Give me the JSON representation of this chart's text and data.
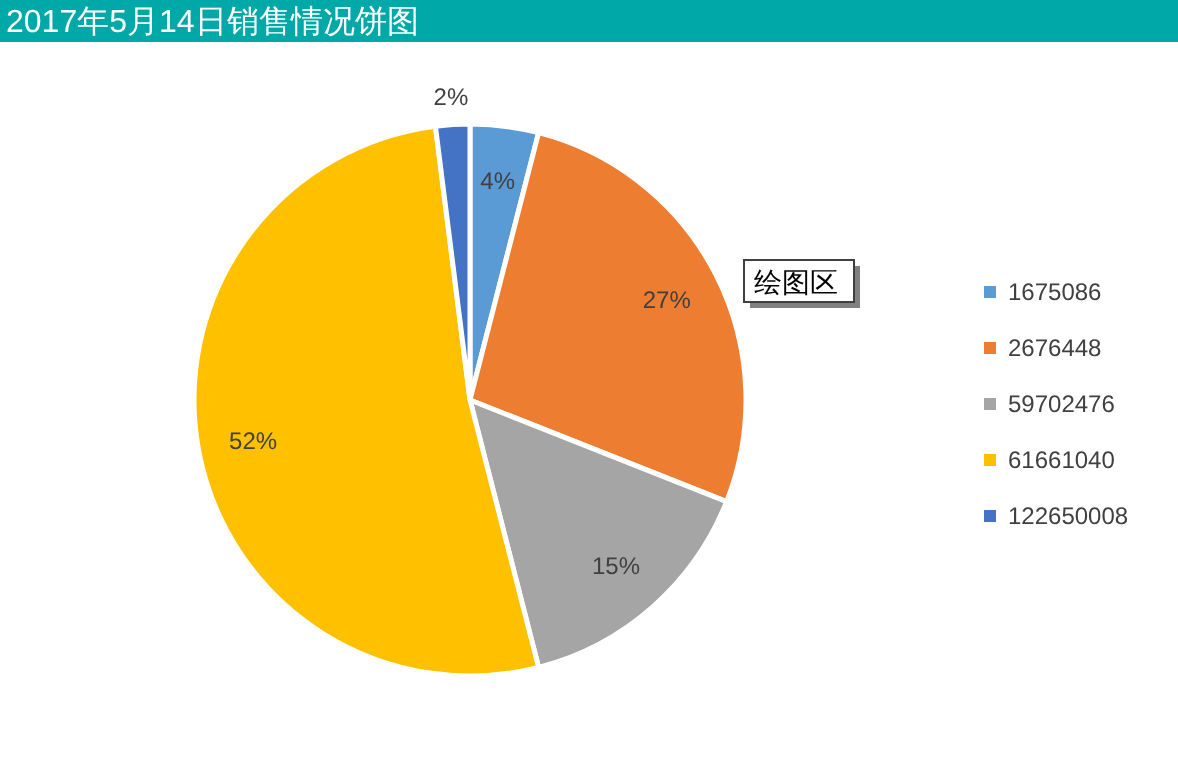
{
  "chart_data": {
    "type": "pie",
    "title": "2017年5月14日销售情况饼图",
    "categories": [
      "1675086",
      "2676448",
      "59702476",
      "61661040",
      "122650008"
    ],
    "values": [
      4,
      27,
      15,
      52,
      2
    ],
    "colors": [
      "#5b9bd5",
      "#ed7d31",
      "#a5a5a5",
      "#ffc000",
      "#4472c4"
    ],
    "value_labels": [
      "4%",
      "27%",
      "15%",
      "52%",
      "2%"
    ],
    "legend": "right",
    "annotations": [
      "绘图区"
    ]
  }
}
